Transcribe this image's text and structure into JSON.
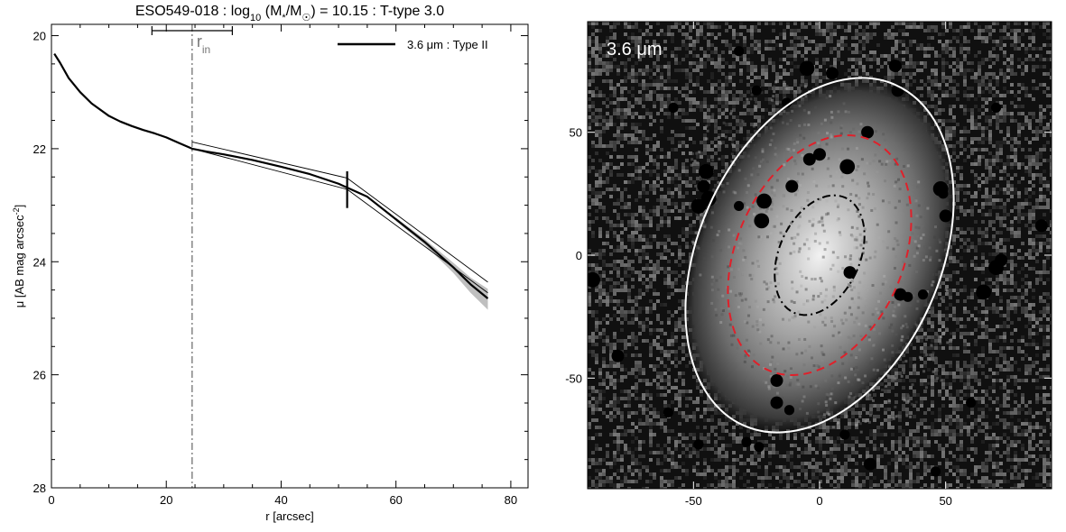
{
  "chart_data": [
    {
      "type": "line",
      "title": "ESO549-018 : log₁₀ (M*/M☉) = 10.15 : T-type 3.0",
      "xlabel": "r [arcsec]",
      "ylabel": "μ [AB mag arcsec⁻²]",
      "xlim": [
        0,
        83
      ],
      "ylim": [
        28,
        19.8
      ],
      "y_inverted": true,
      "x_ticks": [
        0,
        20,
        40,
        60,
        80
      ],
      "y_ticks": [
        20,
        22,
        24,
        26,
        28
      ],
      "legend": {
        "entry": "3.6 μm : Type II",
        "position": "top-right"
      },
      "annotations": {
        "r_in": {
          "label": "r",
          "subscript": "in",
          "x": 24.5,
          "error_bar": [
            17.5,
            31.5
          ]
        },
        "break_marker": {
          "x": 51.5,
          "y_range": [
            22.4,
            23.05
          ]
        }
      },
      "series": [
        {
          "role": "profile",
          "x": [
            0.5,
            1.5,
            3,
            5,
            7,
            10,
            12,
            14,
            16,
            18,
            20,
            22,
            24.5,
            27,
            30,
            35,
            40,
            45,
            50,
            55,
            60,
            65,
            70,
            73,
            76
          ],
          "y": [
            20.32,
            20.48,
            20.75,
            21.0,
            21.2,
            21.42,
            21.52,
            21.6,
            21.67,
            21.73,
            21.8,
            21.89,
            22.0,
            22.05,
            22.1,
            22.2,
            22.32,
            22.45,
            22.62,
            22.85,
            23.25,
            23.65,
            24.1,
            24.4,
            24.65
          ]
        },
        {
          "role": "fit",
          "x": [
            24.5,
            51.5,
            76
          ],
          "y": [
            22.0,
            22.72,
            24.55
          ]
        },
        {
          "role": "fit",
          "x": [
            24.5,
            51.5,
            76
          ],
          "y": [
            21.88,
            22.52,
            24.36
          ]
        }
      ],
      "error_band": {
        "x": [
          60,
          65,
          70,
          73,
          76
        ],
        "y_low": [
          23.22,
          23.6,
          24.02,
          24.28,
          24.48
        ],
        "y_high": [
          23.28,
          23.7,
          24.2,
          24.55,
          24.85
        ]
      }
    },
    {
      "type": "image",
      "label": "3.6 μm",
      "xlim": [
        -92,
        92
      ],
      "ylim": [
        -95,
        95
      ],
      "x_ticks": [
        -50,
        0,
        50
      ],
      "y_ticks": [
        -50,
        0,
        50
      ],
      "ellipses": [
        {
          "role": "outer",
          "color": "#ffffff",
          "style": "solid",
          "cx": 0,
          "cy": 0,
          "a": 74,
          "b": 48,
          "pa_deg": -24
        },
        {
          "role": "break",
          "color": "#e0202a",
          "style": "dashed",
          "cx": 0,
          "cy": 0,
          "a": 50,
          "b": 33,
          "pa_deg": -24
        },
        {
          "role": "inner",
          "color": "#000000",
          "style": "dashdot",
          "cx": 0,
          "cy": 0,
          "a": 25,
          "b": 16,
          "pa_deg": -24
        }
      ],
      "masked_sources": [
        [
          -5,
          76,
          3
        ],
        [
          5,
          74,
          2.5
        ],
        [
          30,
          77,
          2.5
        ],
        [
          -32,
          83,
          2
        ],
        [
          -13,
          62,
          2
        ],
        [
          -25,
          67,
          2
        ],
        [
          31,
          67,
          2.5
        ],
        [
          19,
          50,
          2.5
        ],
        [
          -45,
          34,
          3
        ],
        [
          -44,
          23,
          3
        ],
        [
          -22,
          22,
          3
        ],
        [
          -11,
          28,
          2.5
        ],
        [
          0,
          41,
          2.5
        ],
        [
          -4,
          39,
          2.5
        ],
        [
          11,
          36,
          3
        ],
        [
          -46,
          28,
          2.5
        ],
        [
          -48,
          20,
          3
        ],
        [
          -32,
          20,
          2
        ],
        [
          -23,
          14,
          3
        ],
        [
          48,
          27,
          3
        ],
        [
          49,
          25,
          2
        ],
        [
          50,
          16,
          2.5
        ],
        [
          12,
          -7,
          2.5
        ],
        [
          32,
          -16,
          2.5
        ],
        [
          41,
          -16,
          2
        ],
        [
          35,
          -17,
          2
        ],
        [
          -17,
          -51,
          2.5
        ],
        [
          -17,
          -60,
          2.5
        ],
        [
          -12,
          -63,
          2
        ],
        [
          -24,
          -78,
          2
        ],
        [
          -29,
          -76,
          2
        ],
        [
          20,
          -85,
          2.5
        ],
        [
          46,
          -88,
          2
        ],
        [
          -80,
          -41,
          2.5
        ],
        [
          65,
          -15,
          3
        ],
        [
          70,
          -5,
          3
        ],
        [
          72,
          -2,
          2.5
        ],
        [
          88,
          12,
          2.5
        ],
        [
          -90,
          -10,
          3
        ],
        [
          60,
          -60,
          2
        ],
        [
          -60,
          -64,
          2
        ],
        [
          10,
          -73,
          2
        ],
        [
          -48,
          -77,
          2
        ],
        [
          -58,
          60,
          2
        ],
        [
          70,
          60,
          2
        ]
      ]
    }
  ]
}
